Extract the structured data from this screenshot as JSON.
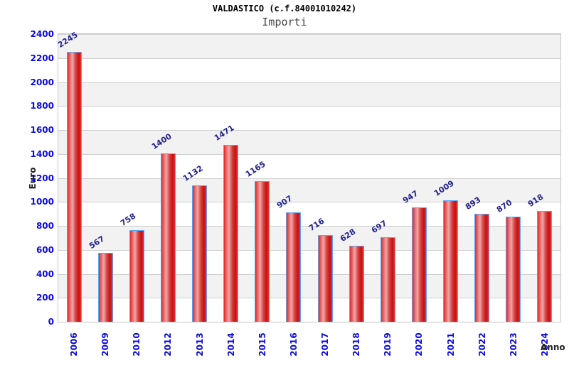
{
  "chart_data": {
    "type": "bar",
    "title": "VALDASTICO (c.f.84001010242)",
    "subtitle": "Importi",
    "xlabel": "Anno",
    "ylabel": "Euro",
    "categories": [
      "2006",
      "2009",
      "2010",
      "2012",
      "2013",
      "2014",
      "2015",
      "2016",
      "2017",
      "2018",
      "2019",
      "2020",
      "2021",
      "2022",
      "2023",
      "2024"
    ],
    "values": [
      2245,
      567,
      758,
      1400,
      1132,
      1471,
      1165,
      907,
      716,
      628,
      697,
      947,
      1009,
      893,
      870,
      918
    ],
    "ylim": [
      0,
      2400
    ],
    "ytick_step": 200,
    "grid": true,
    "legend": "none",
    "layout": {
      "band_pattern": "alternating gray/white every 200 units, gray from 200-400 upward",
      "value_labels": "rotated above each bar",
      "x_labels": "rotated 90deg"
    },
    "colors": {
      "bar_fill_main": "#e03030",
      "bar_fill_highlight": "#f0a6a6",
      "bar_fill_dark": "#c41010",
      "bar_border": "#5aa7f5",
      "tick_label": "#0b0bdd",
      "value_label": "#23238f",
      "axis_title": "#222222",
      "gridline": "#cfcfcf",
      "band": "#f2f2f2",
      "frame": "#c6c6c6",
      "title": "#000000",
      "subtitle": "#444444"
    }
  }
}
